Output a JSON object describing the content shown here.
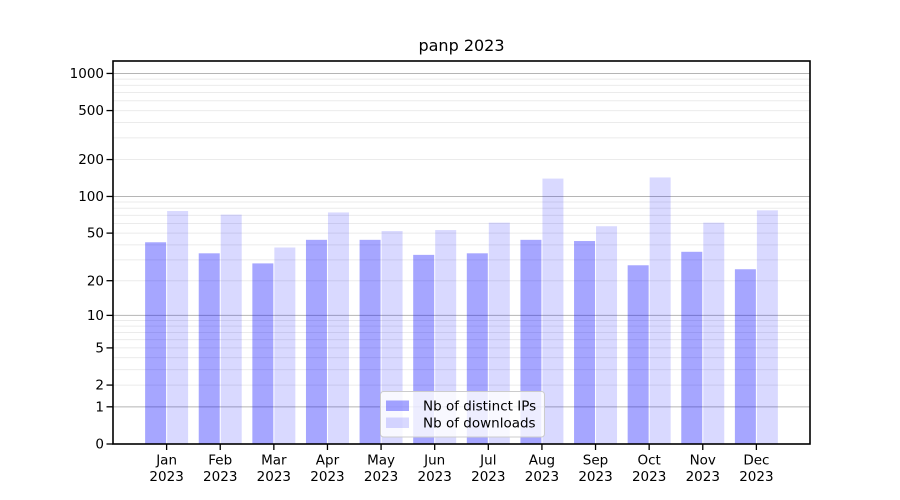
{
  "chart_data": {
    "type": "bar",
    "title": "panp 2023",
    "categories": [
      "Jan",
      "Feb",
      "Mar",
      "Apr",
      "May",
      "Jun",
      "Jul",
      "Aug",
      "Sep",
      "Oct",
      "Nov",
      "Dec"
    ],
    "category_year": "2023",
    "series": [
      {
        "name": "Nb of distinct IPs",
        "fill": "rgba(0,0,255,0.35)",
        "values": [
          42,
          34,
          28,
          44,
          44,
          33,
          34,
          44,
          43,
          27,
          35,
          25
        ]
      },
      {
        "name": "Nb of downloads",
        "fill": "rgba(0,0,255,0.15)",
        "values": [
          76,
          71,
          38,
          74,
          52,
          53,
          61,
          140,
          57,
          143,
          61,
          77
        ]
      }
    ],
    "yticks": [
      0,
      1,
      2,
      5,
      10,
      20,
      50,
      100,
      200,
      500,
      1000
    ],
    "ytick_labels": [
      "0",
      "1",
      "2",
      "5",
      "10",
      "20",
      "50",
      "100",
      "200",
      "500",
      "1000"
    ],
    "scale": "log10(value+1)",
    "ylim": [
      0,
      1200
    ],
    "xlabel": "",
    "ylabel": "",
    "grid": {
      "on": true,
      "major_color": "#b5b5b5",
      "minor_color": "#ebebeb"
    },
    "axis_color": "#000000",
    "legend": {
      "position": "bottom-center",
      "labels": [
        "Nb of distinct IPs",
        "Nb of downloads"
      ],
      "background": "rgba(255,255,255,0.8)",
      "border_color": "#cccccc"
    }
  }
}
